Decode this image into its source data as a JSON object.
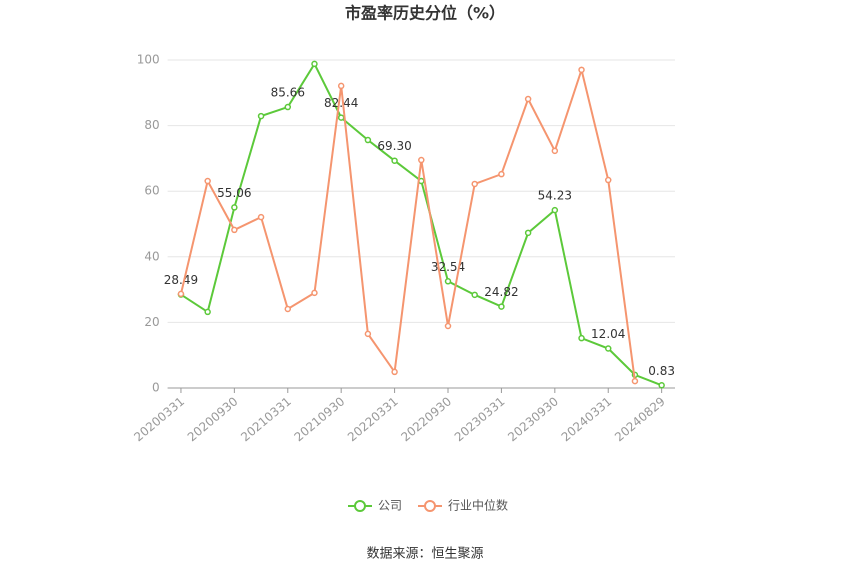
{
  "chart_data": {
    "type": "line",
    "title": "市盈率历史分位（%）",
    "source": "数据来源：恒生聚源",
    "categories": [
      "20200331",
      null,
      "20200930",
      null,
      "20210331",
      null,
      "20210930",
      null,
      "20220331",
      null,
      "20220930",
      null,
      "20230331",
      null,
      "20230930",
      null,
      "20240331",
      null,
      "20240829"
    ],
    "series": [
      {
        "name": "公司",
        "color": "#5cc93a",
        "values": [
          28.49,
          23.2,
          55.06,
          82.9,
          85.66,
          98.8,
          82.44,
          75.6,
          69.3,
          63.1,
          32.54,
          28.4,
          24.82,
          47.3,
          54.23,
          15.2,
          12.04,
          4.0,
          0.83
        ],
        "value_labels": [
          "28.49",
          null,
          "55.06",
          null,
          "85.66",
          null,
          "82.44",
          null,
          "69.30",
          null,
          "32.54",
          null,
          "24.82",
          null,
          "54.23",
          null,
          "12.04",
          null,
          "0.83"
        ]
      },
      {
        "name": "行业中位数",
        "color": "#f5956f",
        "values": [
          28.7,
          63.1,
          48.2,
          52.1,
          24.1,
          29.0,
          92.1,
          16.5,
          4.9,
          69.5,
          18.9,
          62.2,
          65.2,
          88.1,
          72.3,
          97.0,
          63.4,
          2.1,
          null
        ]
      }
    ],
    "ylim": [
      0,
      100
    ],
    "yticks": [
      0,
      20,
      40,
      60,
      80,
      100
    ],
    "grid": true
  }
}
